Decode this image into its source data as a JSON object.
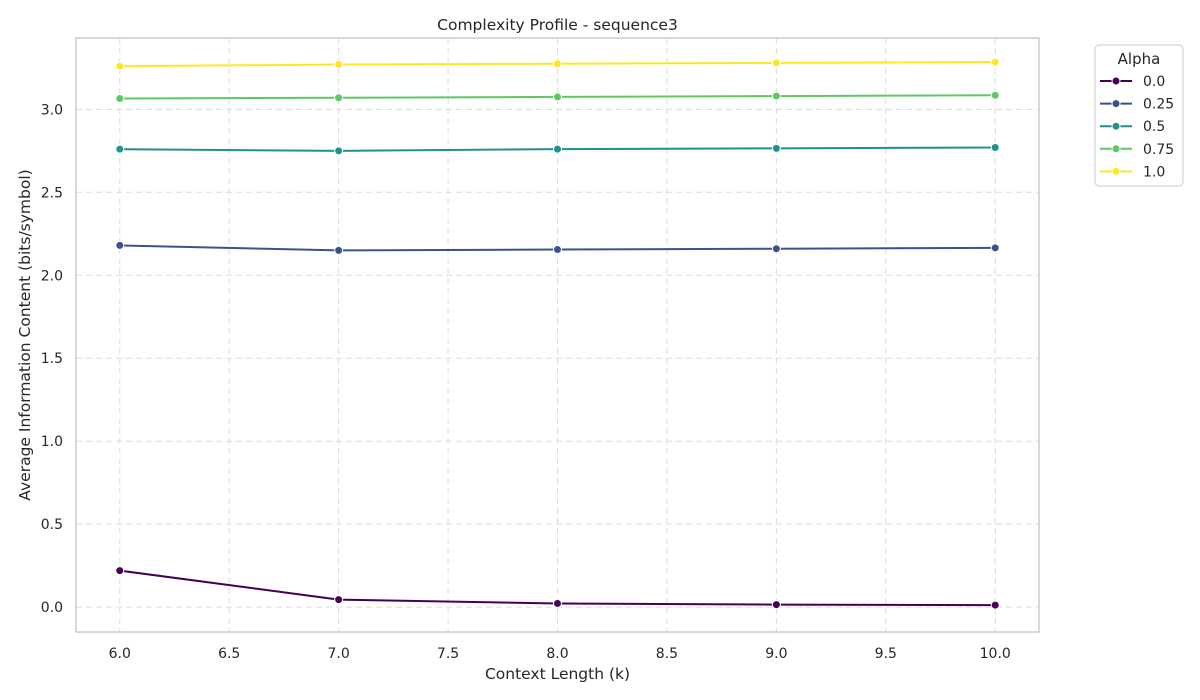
{
  "chart_data": {
    "type": "line",
    "title": "Complexity Profile - sequence3",
    "xlabel": "Context Length (k)",
    "ylabel": "Average Information Content (bits/symbol)",
    "x": [
      6.0,
      7.0,
      8.0,
      9.0,
      10.0
    ],
    "xlim": [
      5.8,
      10.2
    ],
    "ylim": [
      -0.15,
      3.43
    ],
    "xticks": [
      6.0,
      6.5,
      7.0,
      7.5,
      8.0,
      8.5,
      9.0,
      9.5,
      10.0
    ],
    "xtick_labels": [
      "6.0",
      "6.5",
      "7.0",
      "7.5",
      "8.0",
      "8.5",
      "9.0",
      "9.5",
      "10.0"
    ],
    "yticks": [
      0.0,
      0.5,
      1.0,
      1.5,
      2.0,
      2.5,
      3.0
    ],
    "ytick_labels": [
      "0.0",
      "0.5",
      "1.0",
      "1.5",
      "2.0",
      "2.5",
      "3.0"
    ],
    "grid": true,
    "legend": {
      "title": "Alpha",
      "placement": "outside-top-right"
    },
    "series": [
      {
        "name": "0.0",
        "color": "#440154",
        "values": [
          0.22,
          0.045,
          0.022,
          0.015,
          0.012
        ]
      },
      {
        "name": "0.25",
        "color": "#3b528b",
        "values": [
          2.18,
          2.15,
          2.155,
          2.16,
          2.165
        ]
      },
      {
        "name": "0.5",
        "color": "#21918c",
        "values": [
          2.76,
          2.75,
          2.76,
          2.765,
          2.77
        ]
      },
      {
        "name": "0.75",
        "color": "#5ec962",
        "values": [
          3.065,
          3.07,
          3.075,
          3.08,
          3.085
        ]
      },
      {
        "name": "1.0",
        "color": "#fde725",
        "values": [
          3.26,
          3.27,
          3.275,
          3.28,
          3.285
        ]
      }
    ]
  }
}
